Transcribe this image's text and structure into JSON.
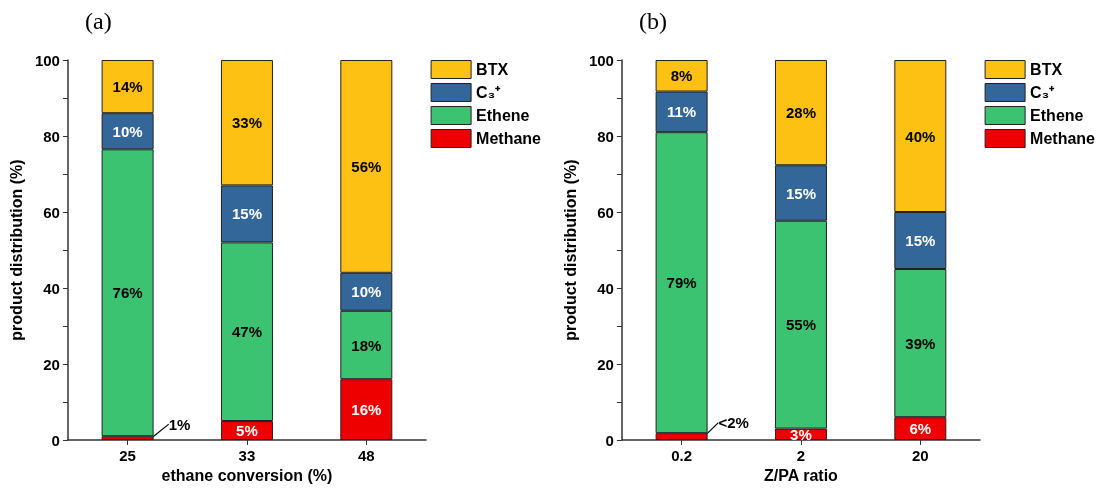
{
  "chart_data": [
    {
      "type": "bar",
      "title": "(a)",
      "xlabel": "ethane conversion (%)",
      "ylabel": "product distribution (%)",
      "categories": [
        "25",
        "33",
        "48"
      ],
      "stacked": true,
      "series": [
        {
          "name": "Methane",
          "color": "#ee0000",
          "values": [
            1,
            5,
            16
          ],
          "value_labels": [
            "1%",
            "5%",
            "16%"
          ]
        },
        {
          "name": "Ethene",
          "color": "#3cc372",
          "values": [
            75.5,
            47,
            18
          ],
          "value_labels": [
            "76%",
            "47%",
            "18%"
          ]
        },
        {
          "name": "C₃⁺",
          "color": "#336699",
          "values": [
            9.5,
            15,
            10
          ],
          "value_labels": [
            "10%",
            "15%",
            "10%"
          ]
        },
        {
          "name": "BTX",
          "color": "#fdc114",
          "values": [
            14,
            33,
            56
          ],
          "value_labels": [
            "14%",
            "33%",
            "56%"
          ]
        }
      ],
      "ylim": [
        0,
        100
      ],
      "yticks": [
        0,
        {
          "value": 10,
          "label": null
        },
        20,
        {
          "value": 30,
          "label": null
        },
        40,
        {
          "value": 50,
          "label": null
        },
        60,
        {
          "value": 70,
          "label": null
        },
        80,
        {
          "value": 90,
          "label": null
        },
        100
      ],
      "grid": false,
      "legend": "top right"
    },
    {
      "type": "bar",
      "title": "(b)",
      "xlabel": "Z/PA ratio",
      "ylabel": "product distribution (%)",
      "categories": [
        "0.2",
        "2",
        "20"
      ],
      "stacked": true,
      "series": [
        {
          "name": "Methane",
          "color": "#ee0000",
          "values": [
            1.8,
            3,
            6
          ],
          "value_labels": [
            "<2%",
            "3%",
            "6%"
          ]
        },
        {
          "name": "Ethene",
          "color": "#3cc372",
          "values": [
            79.2,
            54.7,
            39
          ],
          "value_labels": [
            "79%",
            "55%",
            "39%"
          ]
        },
        {
          "name": "C₃⁺",
          "color": "#336699",
          "values": [
            10.7,
            14.6,
            15
          ],
          "value_labels": [
            "11%",
            "15%",
            "15%"
          ]
        },
        {
          "name": "BTX",
          "color": "#fdc114",
          "values": [
            8.3,
            27.7,
            40
          ],
          "value_labels": [
            "8%",
            "28%",
            "40%"
          ]
        }
      ],
      "ylim": [
        0,
        100
      ],
      "yticks": [
        0,
        {
          "value": 10,
          "label": null
        },
        20,
        {
          "value": 30,
          "label": null
        },
        40,
        {
          "value": 50,
          "label": null
        },
        60,
        {
          "value": 70,
          "label": null
        },
        80,
        {
          "value": 90,
          "label": null
        },
        100
      ],
      "grid": false,
      "legend": "top right"
    }
  ]
}
